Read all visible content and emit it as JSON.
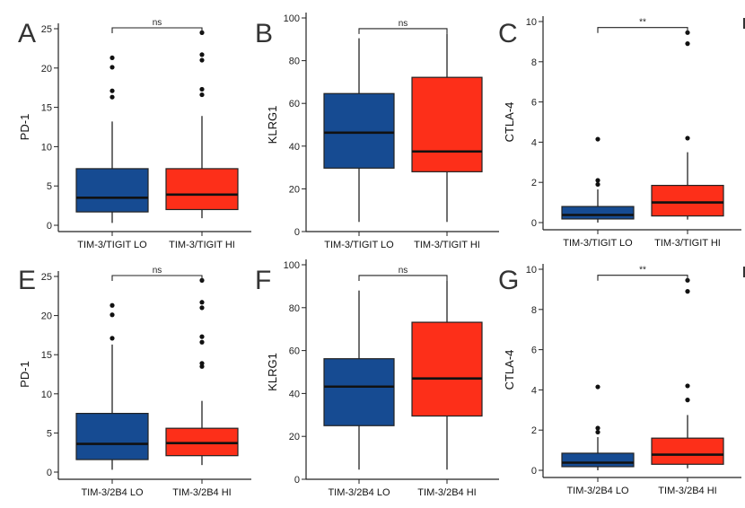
{
  "figure": {
    "colors": {
      "lo": "#164b92",
      "hi": "#fd2f19",
      "line": "#111111"
    },
    "partial_panels_right": [
      "D",
      "H"
    ]
  },
  "chart_data": [
    {
      "panel": "A",
      "type": "box",
      "ylabel": "PD-1",
      "ylim": [
        0,
        25
      ],
      "yticks": [
        0,
        5,
        10,
        15,
        20,
        25
      ],
      "categories": [
        "TIM-3/TIGIT LO",
        "TIM-3/TIGIT HI"
      ],
      "significance": "ns",
      "boxes": [
        {
          "q1": 1.7,
          "median": 3.5,
          "q3": 7.2,
          "whisker_low": 0.3,
          "whisker_high": 13.2,
          "outliers": [
            16.3,
            17.1,
            20.1,
            21.3
          ]
        },
        {
          "q1": 2.0,
          "median": 3.9,
          "q3": 7.2,
          "whisker_low": 0.9,
          "whisker_high": 13.9,
          "outliers": [
            16.6,
            17.3,
            21.0,
            21.7,
            24.5
          ]
        }
      ]
    },
    {
      "panel": "B",
      "type": "box",
      "ylabel": "KLRG1",
      "ylim": [
        0,
        100
      ],
      "yticks": [
        0,
        20,
        40,
        60,
        80,
        100
      ],
      "categories": [
        "TIM-3/TIGIT LO",
        "TIM-3/TIGIT HI"
      ],
      "significance": "ns",
      "boxes": [
        {
          "q1": 29.7,
          "median": 46.3,
          "q3": 64.6,
          "whisker_low": 4.5,
          "whisker_high": 90.5,
          "outliers": []
        },
        {
          "q1": 28.0,
          "median": 37.5,
          "q3": 72.2,
          "whisker_low": 4.5,
          "whisker_high": 92.5,
          "outliers": []
        }
      ]
    },
    {
      "panel": "C",
      "type": "box",
      "ylabel": "CTLA-4",
      "ylim": [
        0,
        10
      ],
      "yticks": [
        0,
        2,
        4,
        6,
        8,
        10
      ],
      "categories": [
        "TIM-3/TIGIT LO",
        "TIM-3/TIGIT HI"
      ],
      "significance": "**",
      "boxes": [
        {
          "q1": 0.18,
          "median": 0.38,
          "q3": 0.8,
          "whisker_low": 0.0,
          "whisker_high": 1.65,
          "outliers": [
            1.9,
            2.1,
            4.15
          ]
        },
        {
          "q1": 0.33,
          "median": 1.0,
          "q3": 1.85,
          "whisker_low": 0.15,
          "whisker_high": 3.5,
          "outliers": [
            4.2,
            8.9,
            9.45
          ]
        }
      ]
    },
    {
      "panel": "E",
      "type": "box",
      "ylabel": "PD-1",
      "ylim": [
        0,
        25
      ],
      "yticks": [
        0,
        5,
        10,
        15,
        20,
        25
      ],
      "categories": [
        "TIM-3/2B4 LO",
        "TIM-3/2B4 HI"
      ],
      "significance": "ns",
      "boxes": [
        {
          "q1": 1.6,
          "median": 3.6,
          "q3": 7.5,
          "whisker_low": 0.3,
          "whisker_high": 16.3,
          "outliers": [
            17.1,
            20.1,
            21.3
          ]
        },
        {
          "q1": 2.1,
          "median": 3.7,
          "q3": 5.6,
          "whisker_low": 0.9,
          "whisker_high": 9.1,
          "outliers": [
            13.5,
            13.9,
            16.6,
            17.3,
            21.0,
            21.7,
            24.5
          ]
        }
      ]
    },
    {
      "panel": "F",
      "type": "box",
      "ylabel": "KLRG1",
      "ylim": [
        0,
        100
      ],
      "yticks": [
        0,
        20,
        40,
        60,
        80,
        100
      ],
      "categories": [
        "TIM-3/2B4 LO",
        "TIM-3/2B4 HI"
      ],
      "significance": "ns",
      "boxes": [
        {
          "q1": 25.0,
          "median": 43.2,
          "q3": 56.2,
          "whisker_low": 4.5,
          "whisker_high": 88.0,
          "outliers": []
        },
        {
          "q1": 29.5,
          "median": 47.0,
          "q3": 73.2,
          "whisker_low": 4.5,
          "whisker_high": 92.5,
          "outliers": []
        }
      ]
    },
    {
      "panel": "G",
      "type": "box",
      "ylabel": "CTLA-4",
      "ylim": [
        0,
        10
      ],
      "yticks": [
        0,
        2,
        4,
        6,
        8,
        10
      ],
      "categories": [
        "TIM-3/2B4 LO",
        "TIM-3/2B4 HI"
      ],
      "significance": "**",
      "boxes": [
        {
          "q1": 0.18,
          "median": 0.38,
          "q3": 0.85,
          "whisker_low": 0.0,
          "whisker_high": 1.65,
          "outliers": [
            1.9,
            2.1,
            4.15
          ]
        },
        {
          "q1": 0.3,
          "median": 0.78,
          "q3": 1.6,
          "whisker_low": 0.1,
          "whisker_high": 2.75,
          "outliers": [
            3.5,
            4.2,
            8.9,
            9.45
          ]
        }
      ]
    }
  ]
}
